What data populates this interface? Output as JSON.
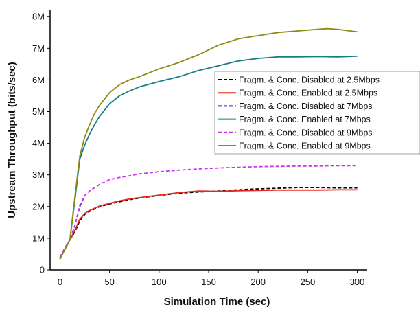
{
  "chart_data": {
    "type": "line",
    "title": "",
    "xlabel": "Simulation Time (sec)",
    "ylabel": "Upstream Throughput (bits/sec)",
    "xlim": [
      -10,
      310
    ],
    "ylim": [
      0,
      8200000
    ],
    "xticks": [
      0,
      50,
      100,
      150,
      200,
      250,
      300
    ],
    "xtick_labels": [
      "0",
      "50",
      "100",
      "150",
      "200",
      "250",
      "300"
    ],
    "yticks": [
      0,
      1000000,
      2000000,
      3000000,
      4000000,
      5000000,
      6000000,
      7000000,
      8000000
    ],
    "ytick_labels": [
      "0",
      "1M",
      "2M",
      "3M",
      "4M",
      "5M",
      "6M",
      "7M",
      "8M"
    ],
    "grid": false,
    "legend_position": "upper-right",
    "series": [
      {
        "name": "Fragm. & Conc. Disabled at 2.5Mbps",
        "color": "#000000",
        "dash": "dashed",
        "x": [
          0,
          5,
          10,
          15,
          20,
          25,
          30,
          40,
          50,
          60,
          70,
          80,
          100,
          120,
          140,
          160,
          180,
          200,
          220,
          240,
          260,
          280,
          300
        ],
        "y": [
          350000,
          650000,
          950000,
          1200000,
          1550000,
          1750000,
          1850000,
          2000000,
          2080000,
          2150000,
          2220000,
          2270000,
          2350000,
          2420000,
          2460000,
          2490000,
          2530000,
          2560000,
          2580000,
          2600000,
          2600000,
          2590000,
          2590000
        ]
      },
      {
        "name": "Fragm. & Conc. Enabled at 2.5Mbps",
        "color": "#e8271e",
        "dash": "solid",
        "x": [
          0,
          5,
          10,
          15,
          20,
          25,
          30,
          40,
          50,
          60,
          70,
          80,
          100,
          120,
          140,
          160,
          180,
          200,
          220,
          240,
          260,
          280,
          300
        ],
        "y": [
          350000,
          650000,
          950000,
          1250000,
          1600000,
          1780000,
          1880000,
          2020000,
          2100000,
          2180000,
          2240000,
          2280000,
          2360000,
          2440000,
          2490000,
          2480000,
          2500000,
          2510000,
          2520000,
          2520000,
          2520000,
          2530000,
          2530000
        ]
      },
      {
        "name": "Fragm. & Conc. Disabled at 7Mbps",
        "color": "#2a2ae0",
        "dash": "dashed",
        "x": [
          0,
          5,
          10,
          15,
          20,
          25
        ],
        "y": [
          400000,
          700000,
          950000,
          1400000,
          2000000,
          2350000
        ]
      },
      {
        "name": "Fragm. & Conc. Enabled at 7Mbps",
        "color": "#127f87",
        "dash": "solid",
        "x": [
          0,
          5,
          10,
          15,
          20,
          25,
          30,
          35,
          40,
          50,
          60,
          70,
          80,
          100,
          120,
          140,
          160,
          180,
          200,
          220,
          240,
          260,
          280,
          300
        ],
        "y": [
          350000,
          650000,
          950000,
          2200000,
          3500000,
          3950000,
          4300000,
          4600000,
          4850000,
          5250000,
          5500000,
          5650000,
          5780000,
          5950000,
          6100000,
          6300000,
          6450000,
          6600000,
          6680000,
          6730000,
          6730000,
          6740000,
          6730000,
          6750000
        ]
      },
      {
        "name": "Fragm. & Conc. Disabled at 9Mbps",
        "color": "#cc33ee",
        "dash": "dashed",
        "x": [
          0,
          5,
          10,
          15,
          20,
          25,
          30,
          40,
          50,
          60,
          70,
          80,
          100,
          120,
          140,
          160,
          180,
          200,
          220,
          240,
          260,
          280,
          300
        ],
        "y": [
          400000,
          700000,
          950000,
          1400000,
          2050000,
          2350000,
          2500000,
          2700000,
          2850000,
          2920000,
          2970000,
          3030000,
          3100000,
          3150000,
          3190000,
          3220000,
          3240000,
          3260000,
          3270000,
          3280000,
          3280000,
          3290000,
          3290000
        ]
      },
      {
        "name": "Fragm. & Conc. Enabled at 9Mbps",
        "color": "#8d8a12",
        "dash": "solid",
        "x": [
          0,
          5,
          10,
          15,
          20,
          25,
          30,
          35,
          40,
          50,
          60,
          70,
          80,
          100,
          120,
          140,
          160,
          180,
          200,
          220,
          240,
          260,
          270,
          280,
          300
        ],
        "y": [
          350000,
          650000,
          950000,
          2300000,
          3600000,
          4200000,
          4600000,
          4950000,
          5200000,
          5600000,
          5850000,
          6000000,
          6100000,
          6350000,
          6550000,
          6800000,
          7100000,
          7300000,
          7400000,
          7500000,
          7550000,
          7600000,
          7620000,
          7600000,
          7520000
        ]
      }
    ]
  }
}
